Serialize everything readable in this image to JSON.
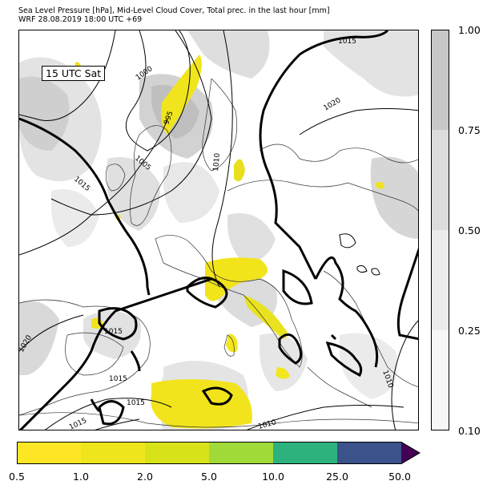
{
  "header": {
    "line1": "Sea Level Pressure [hPa], Mid-Level Cloud Cover, Total prec. in the last hour [mm]",
    "line2": "WRF 28.08.2019 18:00 UTC +69"
  },
  "map": {
    "time_label": "15 UTC Sat",
    "isobar_labels": [
      "1015",
      "1000",
      "995",
      "1020",
      "1005",
      "1010",
      "1015",
      "1020",
      "1015",
      "1015",
      "1015",
      "1010",
      "1010",
      "1015"
    ]
  },
  "cloud_colorbar": {
    "ticks": [
      "1.00",
      "0.75",
      "0.50",
      "0.25",
      "0.10"
    ],
    "colors": [
      "#c8c8c8",
      "#dcdcdc",
      "#ebebeb",
      "#f7f7f7"
    ]
  },
  "precip_colorbar": {
    "ticks": [
      "0.5",
      "1.0",
      "2.0",
      "5.0",
      "10.0",
      "25.0",
      "50.0"
    ],
    "colors": [
      "#fde725",
      "#efe51c",
      "#d8e219",
      "#a0da39",
      "#2db27d",
      "#3b528b",
      "#440154"
    ]
  }
}
